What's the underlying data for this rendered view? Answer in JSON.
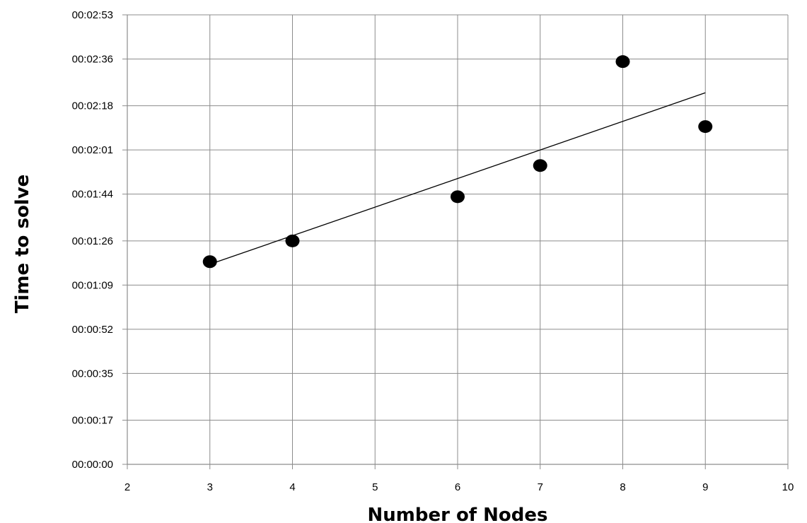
{
  "chart_data": {
    "type": "scatter",
    "title": "",
    "xlabel": "Number of Nodes",
    "ylabel": "Time to solve",
    "x_ticks": [
      "2",
      "3",
      "4",
      "5",
      "6",
      "7",
      "8",
      "9",
      "10"
    ],
    "y_ticks": [
      "00:00:00",
      "00:00:17",
      "00:00:35",
      "00:00:52",
      "00:01:09",
      "00:01:26",
      "00:01:44",
      "00:02:01",
      "00:02:18",
      "00:02:36",
      "00:02:53"
    ],
    "xlim": [
      2,
      10
    ],
    "ylim": [
      "00:00:00",
      "00:02:53"
    ],
    "grid": true,
    "legend": "none",
    "series": [
      {
        "x": [
          3,
          4,
          6,
          7,
          8,
          9
        ],
        "y": [
          "00:01:18",
          "00:01:26",
          "00:01:43",
          "00:01:55",
          "00:02:35",
          "00:02:10"
        ],
        "marker_color": "#000000"
      }
    ],
    "trendline": {
      "type": "linear",
      "x": [
        3,
        9
      ],
      "y": [
        "00:01:17",
        "00:02:23"
      ],
      "color": "#000000"
    }
  }
}
